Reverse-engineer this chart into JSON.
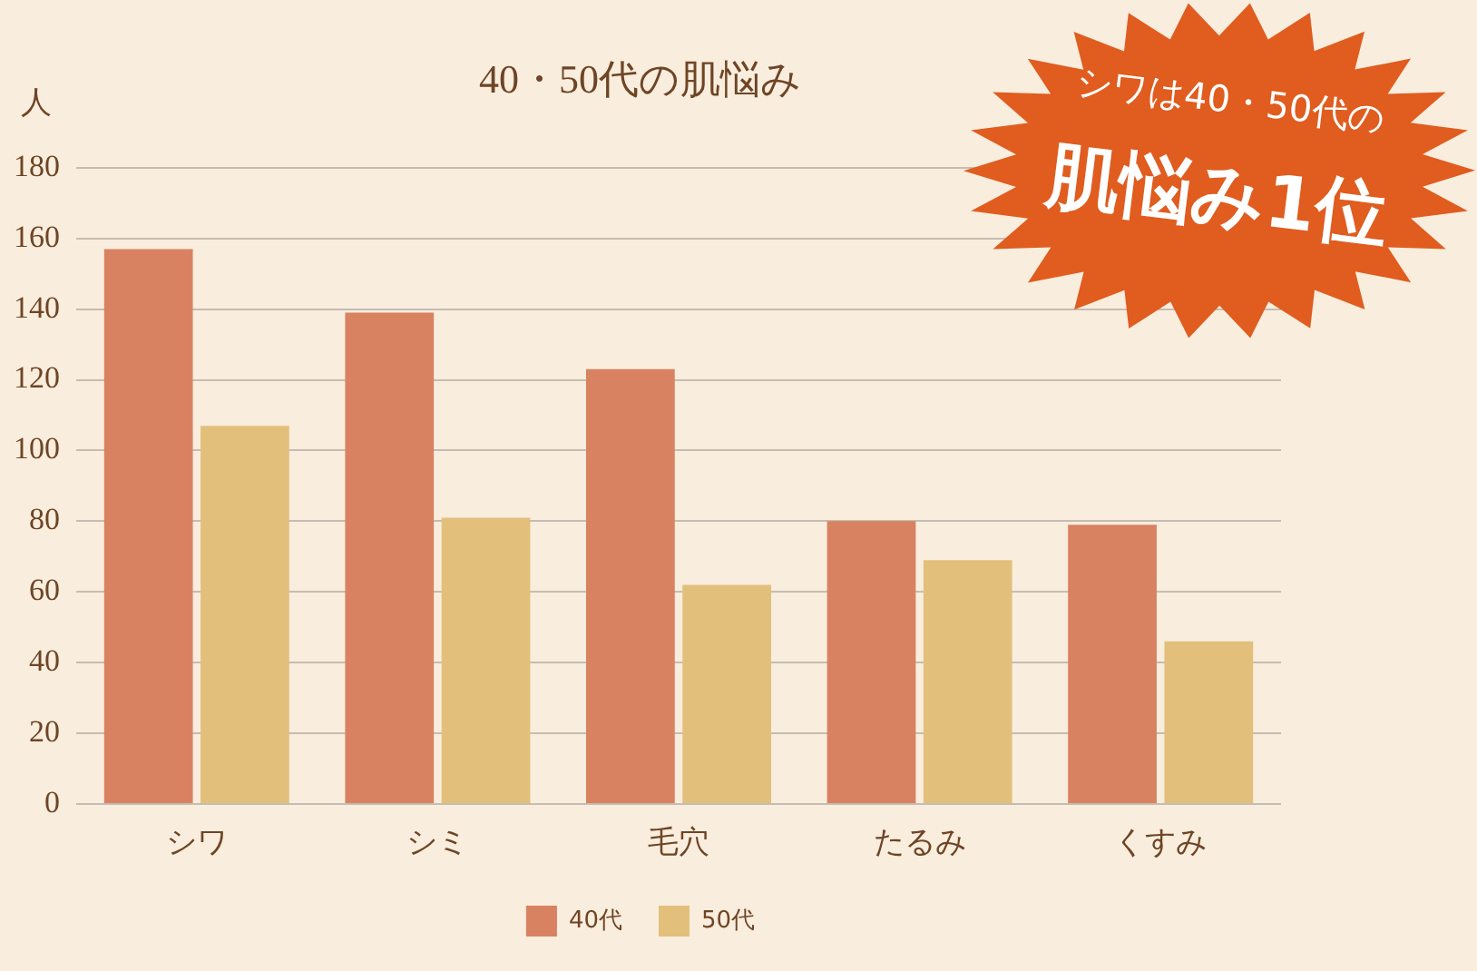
{
  "chart_data": {
    "type": "bar",
    "title": "40・50代の肌悩み",
    "ylabel": "人",
    "categories": [
      "シワ",
      "シミ",
      "毛穴",
      "たるみ",
      "くすみ"
    ],
    "series": [
      {
        "name": "40代",
        "color": "#d88262",
        "values": [
          157,
          139,
          123,
          80,
          79
        ]
      },
      {
        "name": "50代",
        "color": "#e2c07b",
        "values": [
          107,
          81,
          62,
          69,
          46
        ]
      }
    ],
    "ylim": [
      0,
      180
    ],
    "yticks": [
      0,
      20,
      40,
      60,
      80,
      100,
      120,
      140,
      160,
      180
    ],
    "grid": "y",
    "legend": "bottom",
    "annotations": [
      "シワは40・50代の",
      "肌悩み1位"
    ]
  }
}
